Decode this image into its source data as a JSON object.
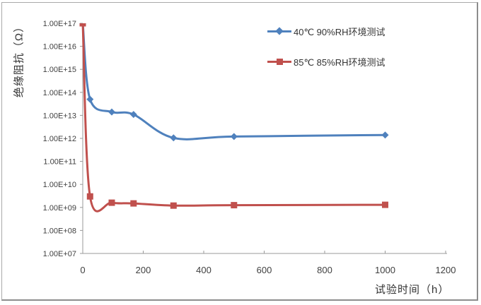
{
  "chart_data": {
    "type": "line",
    "title": "",
    "xlabel": "试验时间（h）",
    "ylabel": "绝缘阻抗（Ω）",
    "axis_color": "#9a9a9a",
    "text_color": "#404040",
    "background": "#ffffff",
    "grid": false,
    "legend_position": "top-right-inside",
    "x_axis": {
      "min": 0,
      "max": 1200,
      "tick_step": 200,
      "ticks": [
        0,
        200,
        400,
        600,
        800,
        1000,
        1200
      ]
    },
    "y_axis": {
      "scale": "log",
      "min": 10000000.0,
      "max": 1e+17,
      "tick_labels": [
        "1.00E+17",
        "1.00E+16",
        "1.00E+15",
        "1.00E+14",
        "1.00E+13",
        "1.00E+12",
        "1.00E+11",
        "1.00E+10",
        "1.00E+09",
        "1.00E+08",
        "1.00E+07"
      ]
    },
    "series": [
      {
        "name": "40℃ 90%RH环境测试",
        "color": "#4F81BD",
        "marker": "diamond",
        "smooth": true,
        "x": [
          0,
          24,
          96,
          168,
          300,
          500,
          1000
        ],
        "y": [
          1e+17,
          50000000000000.0,
          14000000000000.0,
          11000000000000.0,
          1050000000000.0,
          1200000000000.0,
          1400000000000.0
        ]
      },
      {
        "name": "85℃ 85%RH环境测试",
        "color": "#C0504D",
        "marker": "square",
        "smooth": true,
        "x": [
          0,
          24,
          96,
          168,
          300,
          500,
          1000
        ],
        "y": [
          1e+17,
          3000000000.0,
          1600000000.0,
          1500000000.0,
          1200000000.0,
          1250000000.0,
          1300000000.0
        ]
      }
    ]
  }
}
